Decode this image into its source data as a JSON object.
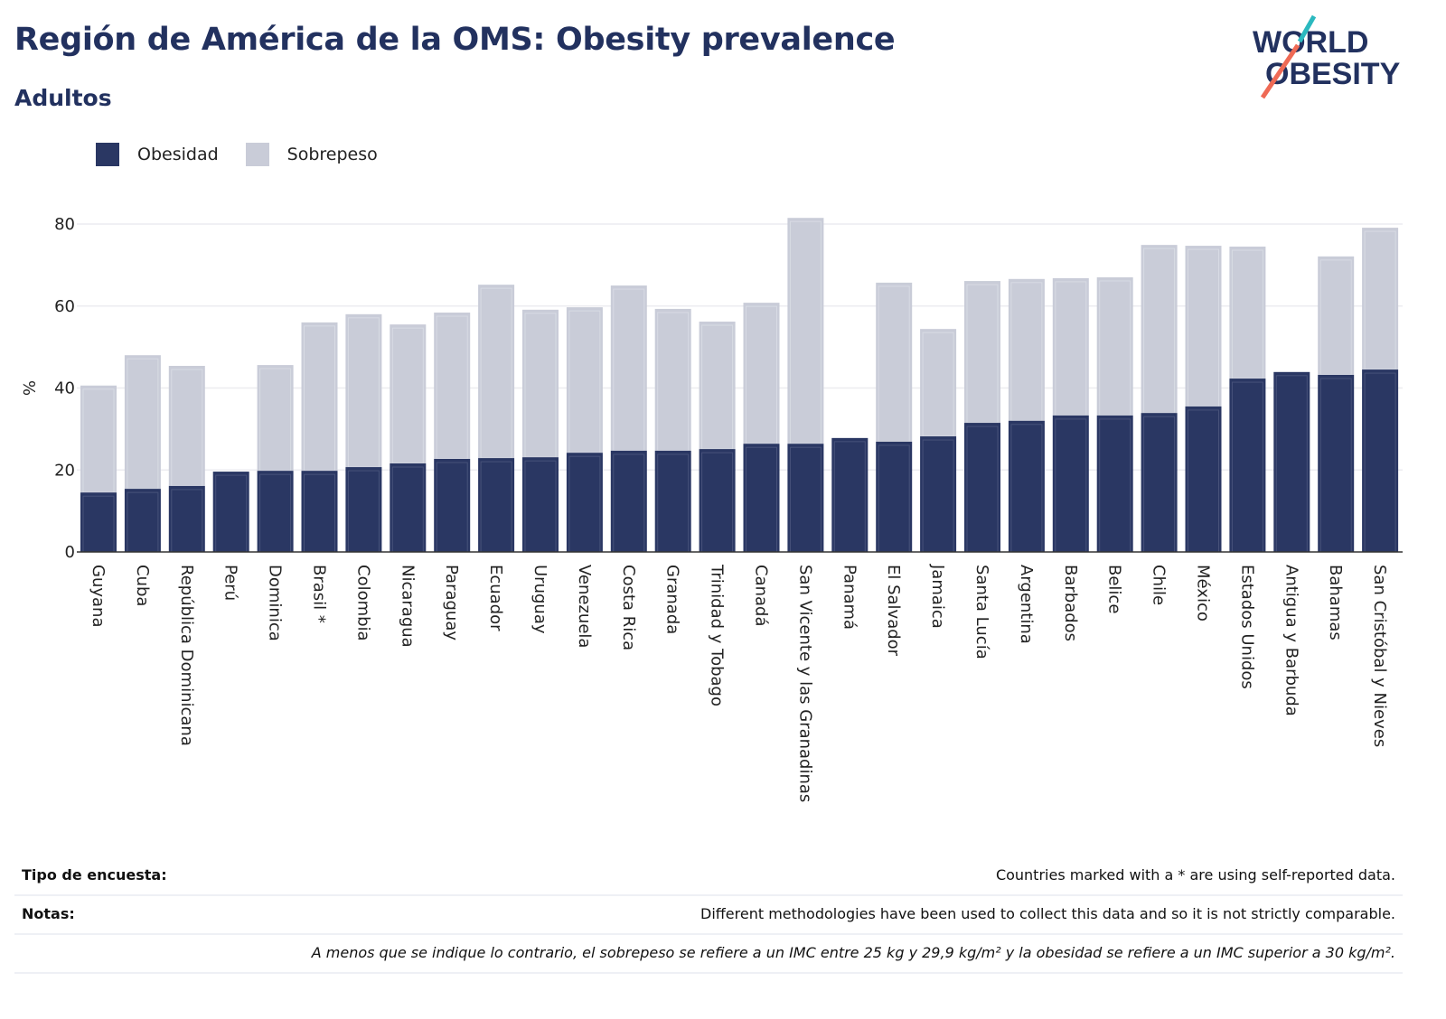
{
  "header": {
    "title": "Región de América de la OMS: Obesity prevalence",
    "subtitle": "Adultos",
    "logo_text": "WORLD OBESITY"
  },
  "colors": {
    "obesity": "#2a3763",
    "overweight": "#c9ccd8",
    "title": "#22315f",
    "logo_teal": "#2bb9bf",
    "logo_coral": "#ef6a55"
  },
  "chart_data": {
    "type": "bar",
    "stacked": true,
    "ylabel": "%",
    "ylim": [
      0,
      80
    ],
    "yticks": [
      0,
      20,
      40,
      60,
      80
    ],
    "grid": true,
    "legend_position": "top-left",
    "categories": [
      "Guyana",
      "Cuba",
      "República Dominicana",
      "Perú",
      "Dominica",
      "Brasil *",
      "Colombia",
      "Nicaragua",
      "Paraguay",
      "Ecuador",
      "Uruguay",
      "Venezuela",
      "Costa Rica",
      "Granada",
      "Trinidad y Tobago",
      "Canadá",
      "San Vicente y las Granadinas",
      "Panamá",
      "El Salvador",
      "Jamaica",
      "Santa Lucía",
      "Argentina",
      "Barbados",
      "Belice",
      "Chile",
      "México",
      "Estados Unidos",
      "Antigua y Barbuda",
      "Bahamas",
      "San Cristóbal y Nieves"
    ],
    "series": [
      {
        "name": "Obesidad",
        "values": [
          14.5,
          15.4,
          16.1,
          19.6,
          19.8,
          19.8,
          20.7,
          21.6,
          22.7,
          22.9,
          23.1,
          24.2,
          24.7,
          24.7,
          25.1,
          26.4,
          26.4,
          27.8,
          26.9,
          28.2,
          31.5,
          32.0,
          33.3,
          33.3,
          33.9,
          35.5,
          42.3,
          43.9,
          43.2,
          44.5
        ]
      },
      {
        "name": "Sobrepeso",
        "values": [
          26.1,
          32.6,
          29.3,
          null,
          25.8,
          36.2,
          37.3,
          33.9,
          35.7,
          42.3,
          36.0,
          35.5,
          40.3,
          34.6,
          31.1,
          34.4,
          55.1,
          null,
          38.8,
          26.2,
          34.6,
          34.6,
          33.5,
          33.7,
          41.0,
          39.2,
          32.2,
          null,
          28.9,
          34.6
        ]
      }
    ]
  },
  "footer": {
    "rows": [
      {
        "label": "Tipo de encuesta:",
        "value": "Countries marked with a * are using self-reported data."
      },
      {
        "label": "Notas:",
        "value": "Different methodologies have been used to collect this data and so it is not strictly comparable."
      },
      {
        "label": "",
        "value": "A menos que se indique lo contrario, el sobrepeso se refiere a un IMC entre 25 kg y 29,9 kg/m² y la obesidad se refiere a un IMC superior a 30 kg/m²."
      }
    ]
  }
}
